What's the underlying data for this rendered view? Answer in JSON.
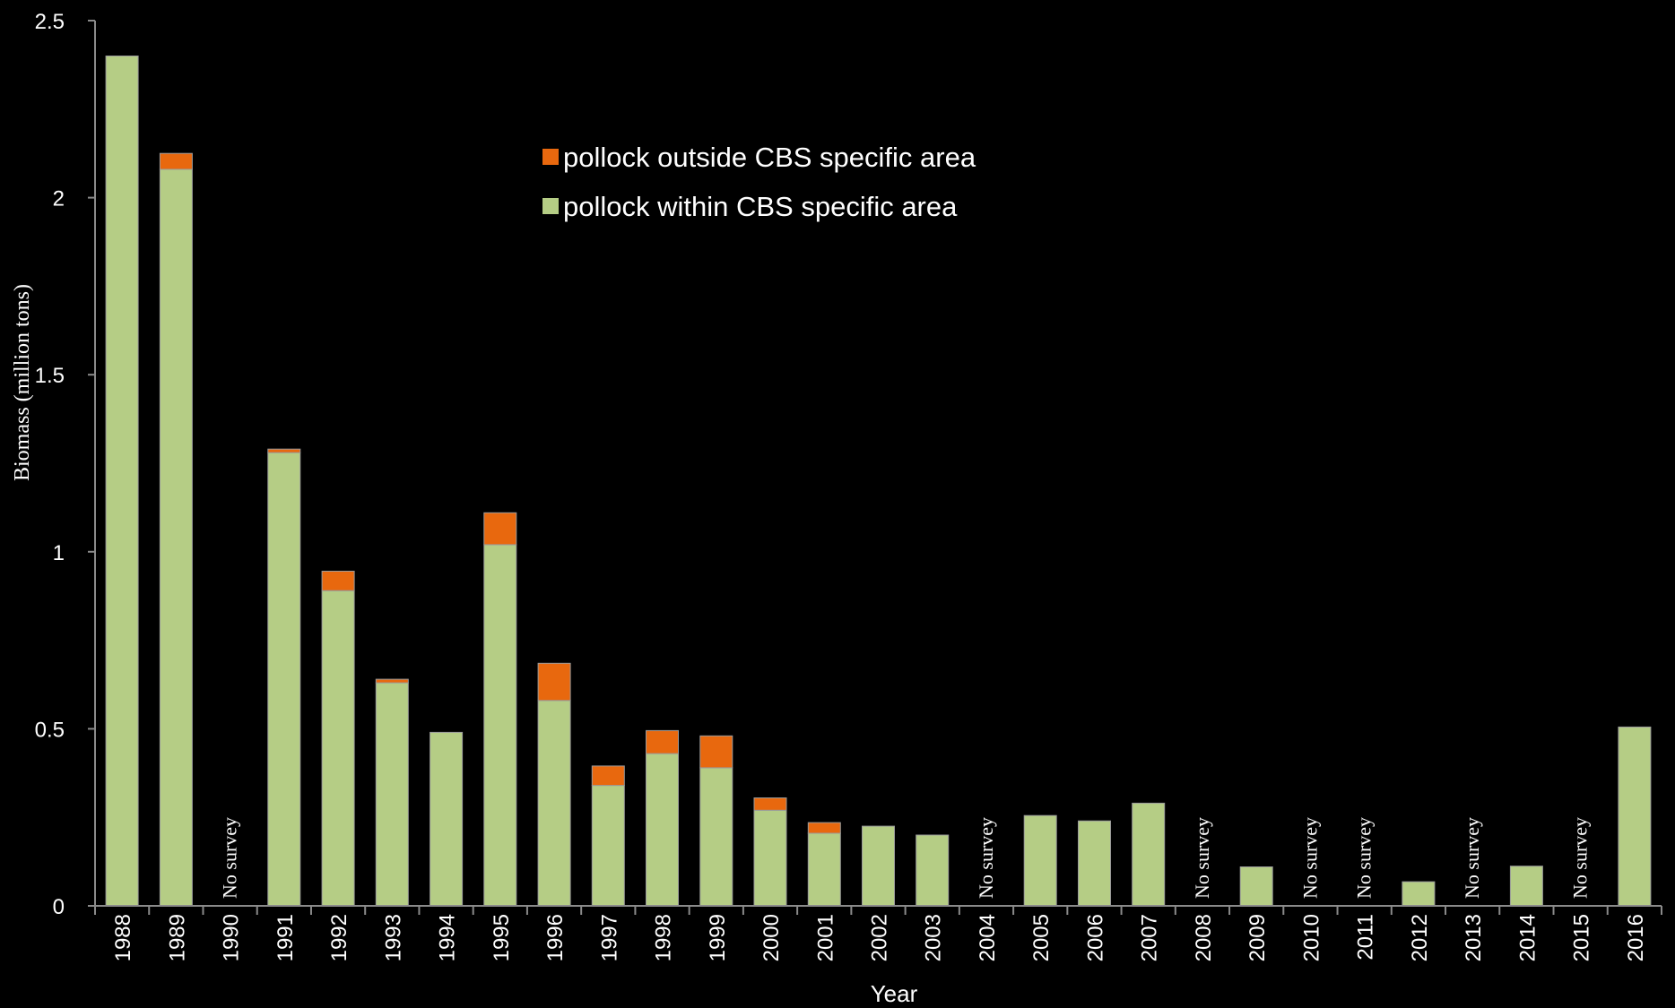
{
  "chart_data": {
    "type": "bar",
    "stacked": true,
    "title": "",
    "xlabel": "Year",
    "ylabel": "Biomass (million tons)",
    "ylim": [
      0,
      2.5
    ],
    "yticks": [
      "0",
      "0.5",
      "1",
      "1.5",
      "2",
      "2.5"
    ],
    "categories": [
      "1988",
      "1989",
      "1990",
      "1991",
      "1992",
      "1993",
      "1994",
      "1995",
      "1996",
      "1997",
      "1998",
      "1999",
      "2000",
      "2001",
      "2002",
      "2003",
      "2004",
      "2005",
      "2006",
      "2007",
      "2008",
      "2009",
      "2010",
      "2011",
      "2012",
      "2013",
      "2014",
      "2015",
      "2016"
    ],
    "series": [
      {
        "name": "pollock within CBS specific area",
        "color": "#b5cd85",
        "values": [
          2.4,
          2.08,
          null,
          1.28,
          0.89,
          0.63,
          0.49,
          1.02,
          0.58,
          0.34,
          0.43,
          0.39,
          0.27,
          0.205,
          0.225,
          0.2,
          null,
          0.255,
          0.24,
          0.29,
          null,
          0.11,
          null,
          null,
          0.068,
          null,
          0.112,
          null,
          0.505
        ]
      },
      {
        "name": "pollock outside CBS specific area",
        "color": "#e8680e",
        "values": [
          0,
          0.045,
          null,
          0.01,
          0.055,
          0.01,
          0,
          0.09,
          0.105,
          0.055,
          0.065,
          0.09,
          0.035,
          0.03,
          0,
          0,
          null,
          0,
          0,
          0,
          null,
          0,
          null,
          null,
          0,
          null,
          0,
          null,
          0
        ]
      }
    ],
    "annotations": [
      {
        "category": "1990",
        "text": "No survey"
      },
      {
        "category": "2004",
        "text": "No survey"
      },
      {
        "category": "2008",
        "text": "No survey"
      },
      {
        "category": "2010",
        "text": "No survey"
      },
      {
        "category": "2011",
        "text": "No survey"
      },
      {
        "category": "2013",
        "text": "No survey"
      },
      {
        "category": "2015",
        "text": "No survey"
      }
    ],
    "legend": {
      "placement": "top-center",
      "items": [
        {
          "label": "pollock outside CBS specific area",
          "color": "#e8680e"
        },
        {
          "label": "pollock within CBS specific area",
          "color": "#b5cd85"
        }
      ]
    },
    "grid": false,
    "colors": {
      "background": "#000000",
      "axis": "#8a8a8a",
      "text": "#ffffff"
    }
  }
}
